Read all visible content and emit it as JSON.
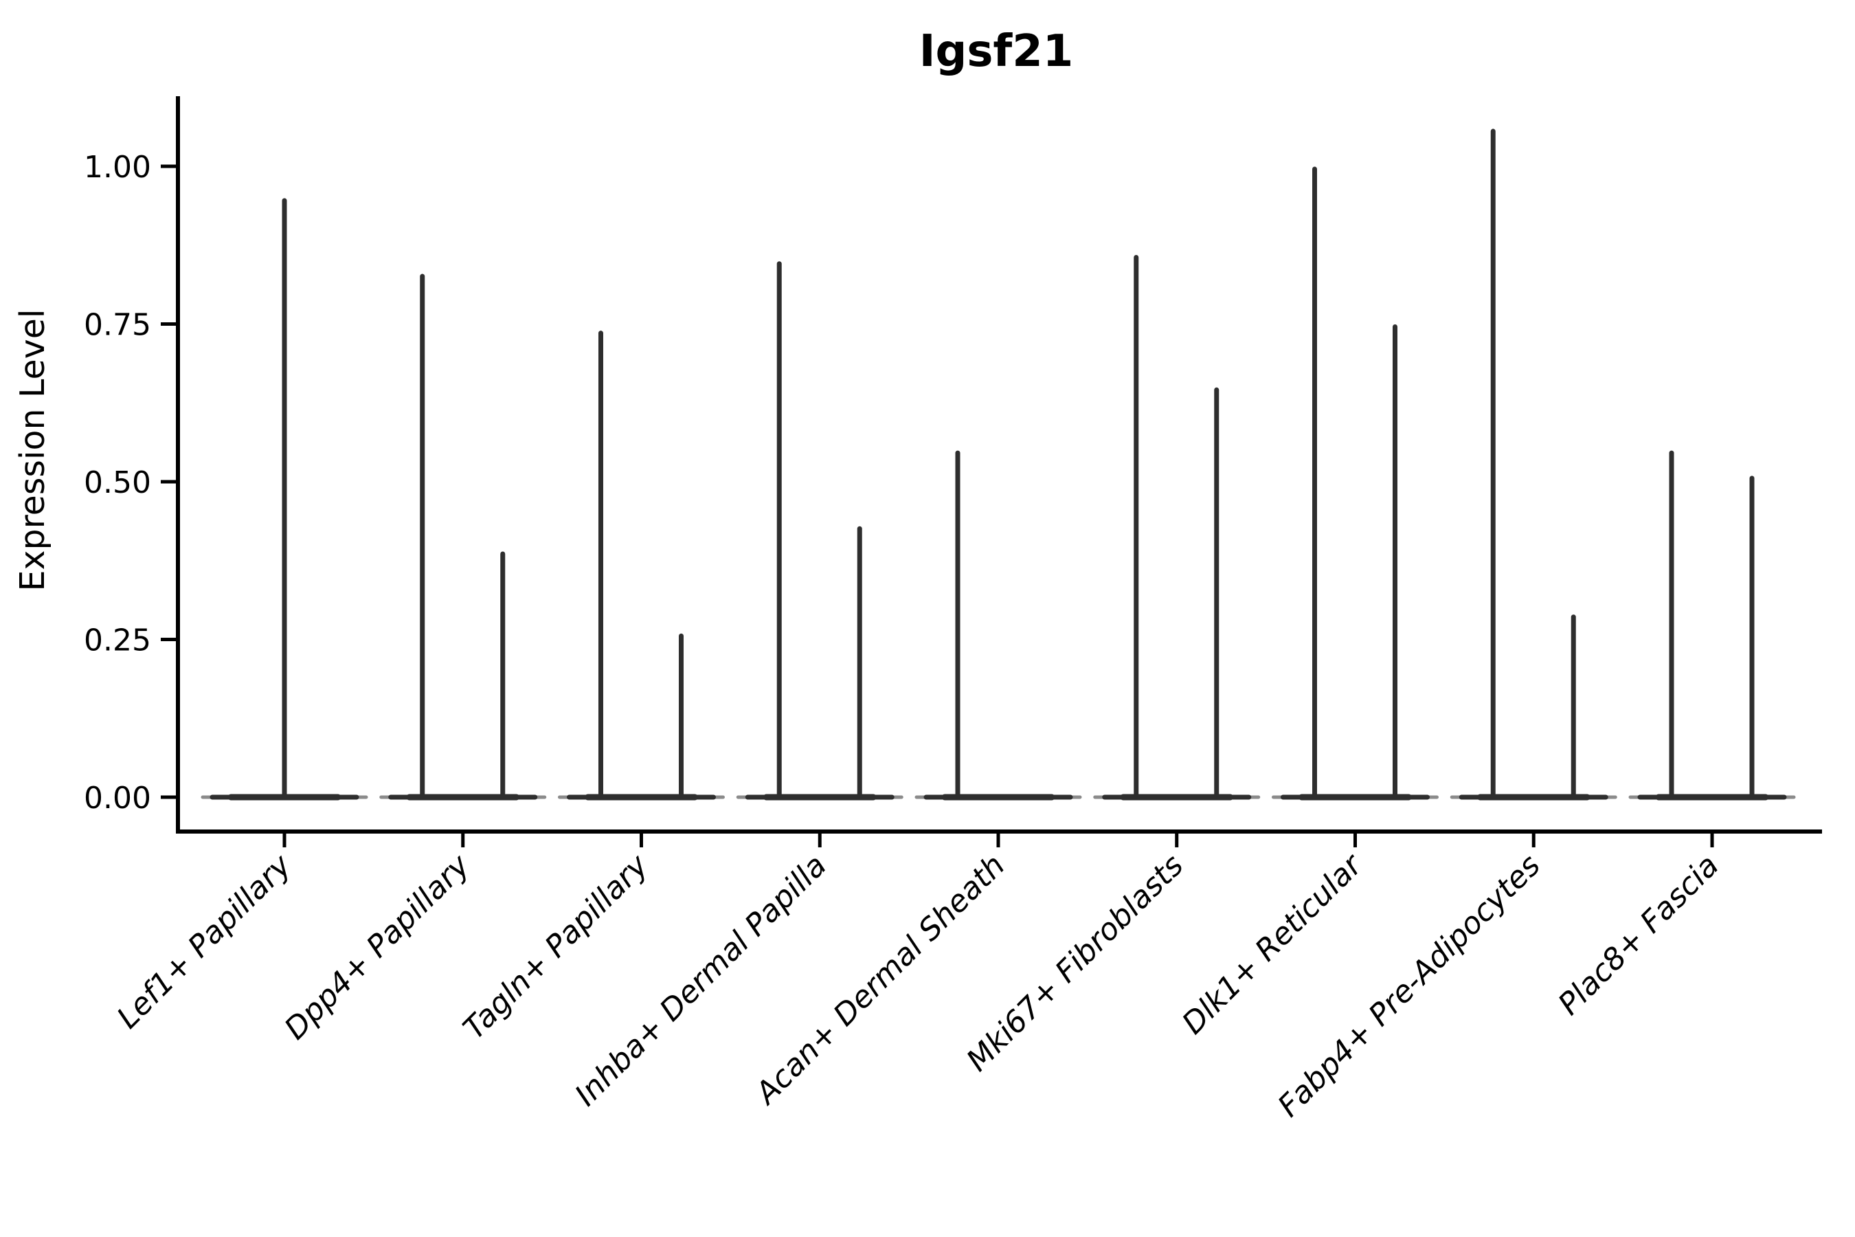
{
  "figure": {
    "title": "Igsf21",
    "ylabel": "Expression Level"
  },
  "chart_data": {
    "type": "violin",
    "title": "Igsf21",
    "xlabel": "",
    "ylabel": "Expression Level",
    "ylim": [
      -0.05,
      1.11
    ],
    "ytick_values": [
      0,
      0.25,
      0.5,
      0.75,
      1.0
    ],
    "ytick_labels": [
      "0.00",
      "0.25",
      "0.50",
      "0.75",
      "1.00"
    ],
    "grid": false,
    "legend": "none",
    "baseline_value": 0,
    "x_label_rotation_deg": 45,
    "x_label_style": "italic",
    "categories": [
      "Lef1+ Papillary",
      "Dpp4+ Papillary",
      "Tagln+ Papillary",
      "Inhba+ Dermal Papilla",
      "Acan+ Dermal Sheath",
      "Mki67+ Fibroblasts",
      "Dlk1+ Reticular",
      "Fabp4+ Pre-Adipocytes",
      "Plac8+ Fascia"
    ],
    "series": [
      {
        "category": "Lef1+ Papillary",
        "violins": [
          {
            "slot": "center",
            "max_expression": 0.95
          }
        ]
      },
      {
        "category": "Dpp4+ Papillary",
        "violins": [
          {
            "slot": "left",
            "max_expression": 0.83
          },
          {
            "slot": "right",
            "max_expression": 0.39
          }
        ]
      },
      {
        "category": "Tagln+ Papillary",
        "violins": [
          {
            "slot": "left",
            "max_expression": 0.74
          },
          {
            "slot": "right",
            "max_expression": 0.26
          }
        ]
      },
      {
        "category": "Inhba+ Dermal Papilla",
        "violins": [
          {
            "slot": "left",
            "max_expression": 0.85
          },
          {
            "slot": "right",
            "max_expression": 0.43
          }
        ]
      },
      {
        "category": "Acan+ Dermal Sheath",
        "violins": [
          {
            "slot": "left",
            "max_expression": 0.55
          }
        ]
      },
      {
        "category": "Mki67+ Fibroblasts",
        "violins": [
          {
            "slot": "left",
            "max_expression": 0.86
          },
          {
            "slot": "right",
            "max_expression": 0.65
          }
        ]
      },
      {
        "category": "Dlk1+ Reticular",
        "violins": [
          {
            "slot": "left",
            "max_expression": 1.0
          },
          {
            "slot": "right",
            "max_expression": 0.75
          }
        ]
      },
      {
        "category": "Fabp4+ Pre-Adipocytes",
        "violins": [
          {
            "slot": "left",
            "max_expression": 1.06
          },
          {
            "slot": "right",
            "max_expression": 0.29
          }
        ]
      },
      {
        "category": "Plac8+ Fascia",
        "violins": [
          {
            "slot": "left",
            "max_expression": 0.55
          },
          {
            "slot": "right",
            "max_expression": 0.51
          }
        ]
      }
    ],
    "colors": {
      "violin": "#2e2e2e",
      "axis": "#000000",
      "text": "#000000",
      "background": "#ffffff"
    }
  }
}
